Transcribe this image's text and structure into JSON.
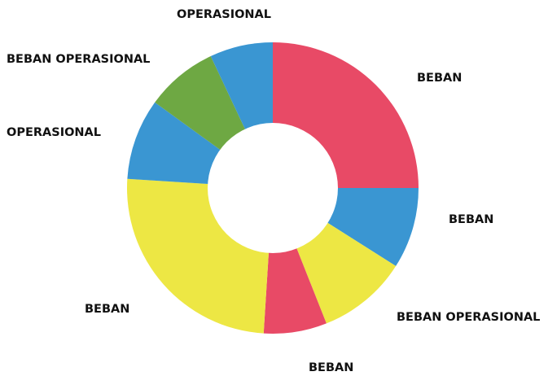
{
  "chart_data": {
    "type": "pie",
    "donut": true,
    "title": "",
    "legend": "none",
    "slices": [
      {
        "label": "BEBAN",
        "value": 25,
        "color": "#E84A66"
      },
      {
        "label": "BEBAN",
        "value": 9,
        "color": "#3A96D2"
      },
      {
        "label": "BEBAN OPERASIONAL",
        "value": 10,
        "color": "#EDE744"
      },
      {
        "label": "BEBAN",
        "value": 7,
        "color": "#E84A66"
      },
      {
        "label": "BEBAN",
        "value": 25,
        "color": "#EDE744"
      },
      {
        "label": "OPERASIONAL",
        "value": 9,
        "color": "#3A96D2"
      },
      {
        "label": "BEBAN OPERASIONAL",
        "value": 8,
        "color": "#6EA843"
      },
      {
        "label": "OPERASIONAL",
        "value": 7,
        "color": "#3A96D2"
      }
    ]
  }
}
